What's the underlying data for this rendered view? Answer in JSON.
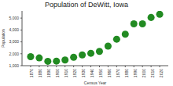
{
  "chart_data": {
    "type": "scatter",
    "title": "Population of DeWitt, Iowa",
    "x_label": "Census Year",
    "y_label": "Population",
    "x": [
      1870,
      1880,
      1890,
      1900,
      1910,
      1920,
      1930,
      1940,
      1950,
      1960,
      1970,
      1980,
      1990,
      2000,
      2010,
      2020
    ],
    "values": [
      1755,
      1650,
      1366,
      1383,
      1473,
      1707,
      1905,
      2041,
      2200,
      2644,
      3224,
      3647,
      4512,
      4514,
      5049,
      5322
    ],
    "color": "#228b22",
    "marker": "circle",
    "xlim": [
      1860,
      2030
    ],
    "xticks": [
      1870,
      1880,
      1890,
      1900,
      1910,
      1920,
      1930,
      1940,
      1950,
      1960,
      1970,
      1980,
      1990,
      2000,
      2010,
      2020
    ],
    "ylim": [
      1000,
      5600
    ],
    "yticks": [
      {
        "value": 1000,
        "label": "1,000"
      },
      {
        "value": 2000,
        "label": "2,000"
      },
      {
        "value": 3000,
        "label": "3,000"
      },
      {
        "value": 4000,
        "label": "4,000"
      },
      {
        "value": 5000,
        "label": "5,000"
      }
    ],
    "grid": false
  }
}
